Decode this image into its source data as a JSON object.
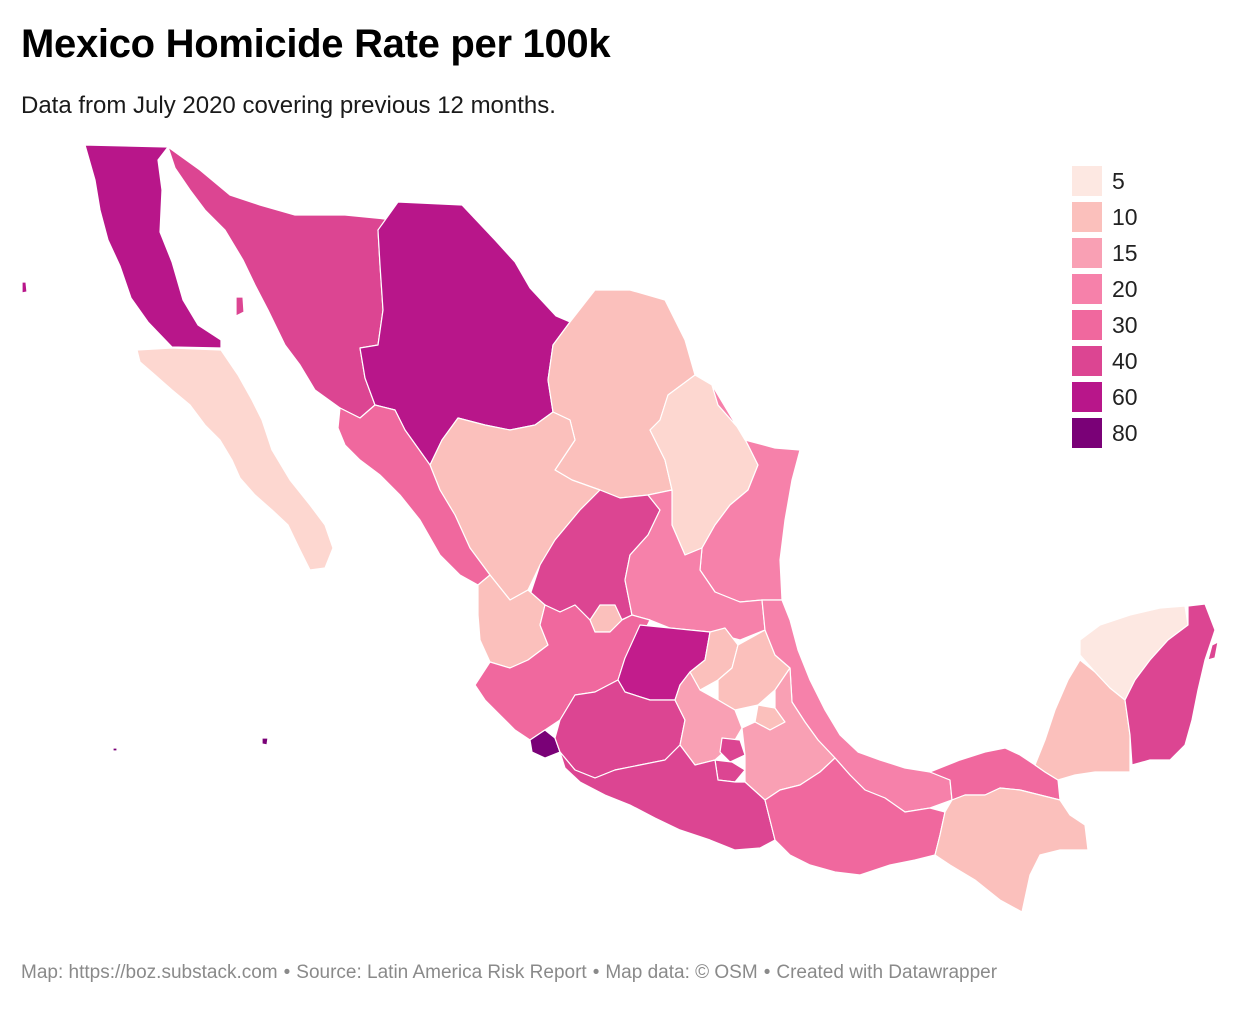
{
  "title": "Mexico Homicide Rate per 100k",
  "subtitle": "Data from July 2020 covering previous 12 months.",
  "legend": [
    {
      "label": "5",
      "color": "#fde8e2"
    },
    {
      "label": "10",
      "color": "#fbc0bc"
    },
    {
      "label": "15",
      "color": "#f9a0b4"
    },
    {
      "label": "20",
      "color": "#f681aa"
    },
    {
      "label": "30",
      "color": "#f0689e"
    },
    {
      "label": "40",
      "color": "#dc4592"
    },
    {
      "label": "60",
      "color": "#b8168a"
    },
    {
      "label": "80",
      "color": "#7a0177"
    }
  ],
  "footer": {
    "map_credit": "Map: https://boz.substack.com",
    "source": "Source: Latin America Risk Report",
    "map_data": "Map data: © OSM",
    "created": "Created with Datawrapper",
    "separator": "•"
  },
  "states": {
    "baja_california": "#b8168a",
    "sonora": "#dc4592",
    "chihuahua": "#b8168a",
    "coahuila": "#fbc0bc",
    "nuevo_leon": "#fdd7d0",
    "tamaulipas": "#f681aa",
    "baja_california_sur": "#fdd7d0",
    "sinaloa": "#f0689e",
    "durango": "#fbc0bc",
    "zacatecas": "#dc4592",
    "san_luis_potosi": "#f681aa",
    "nayarit": "#fbc0bc",
    "aguascalientes": "#fbc0bc",
    "jalisco": "#f0689e",
    "guanajuato": "#c21c8c",
    "queretaro": "#fbc0bc",
    "hidalgo": "#fbc0bc",
    "veracruz": "#f681aa",
    "colima": "#7a0177",
    "michoacan": "#dc4592",
    "mexico": "#f9a0b4",
    "cdmx": "#dc4592",
    "morelos": "#dc4592",
    "tlaxcala": "#fbc0bc",
    "puebla": "#f9a0b4",
    "guerrero": "#dc4592",
    "oaxaca": "#f0689e",
    "tabasco": "#f0689e",
    "chiapas": "#fbc0bc",
    "campeche": "#fbc0bc",
    "yucatan": "#fde8e2",
    "quintana_roo": "#dc4592"
  }
}
